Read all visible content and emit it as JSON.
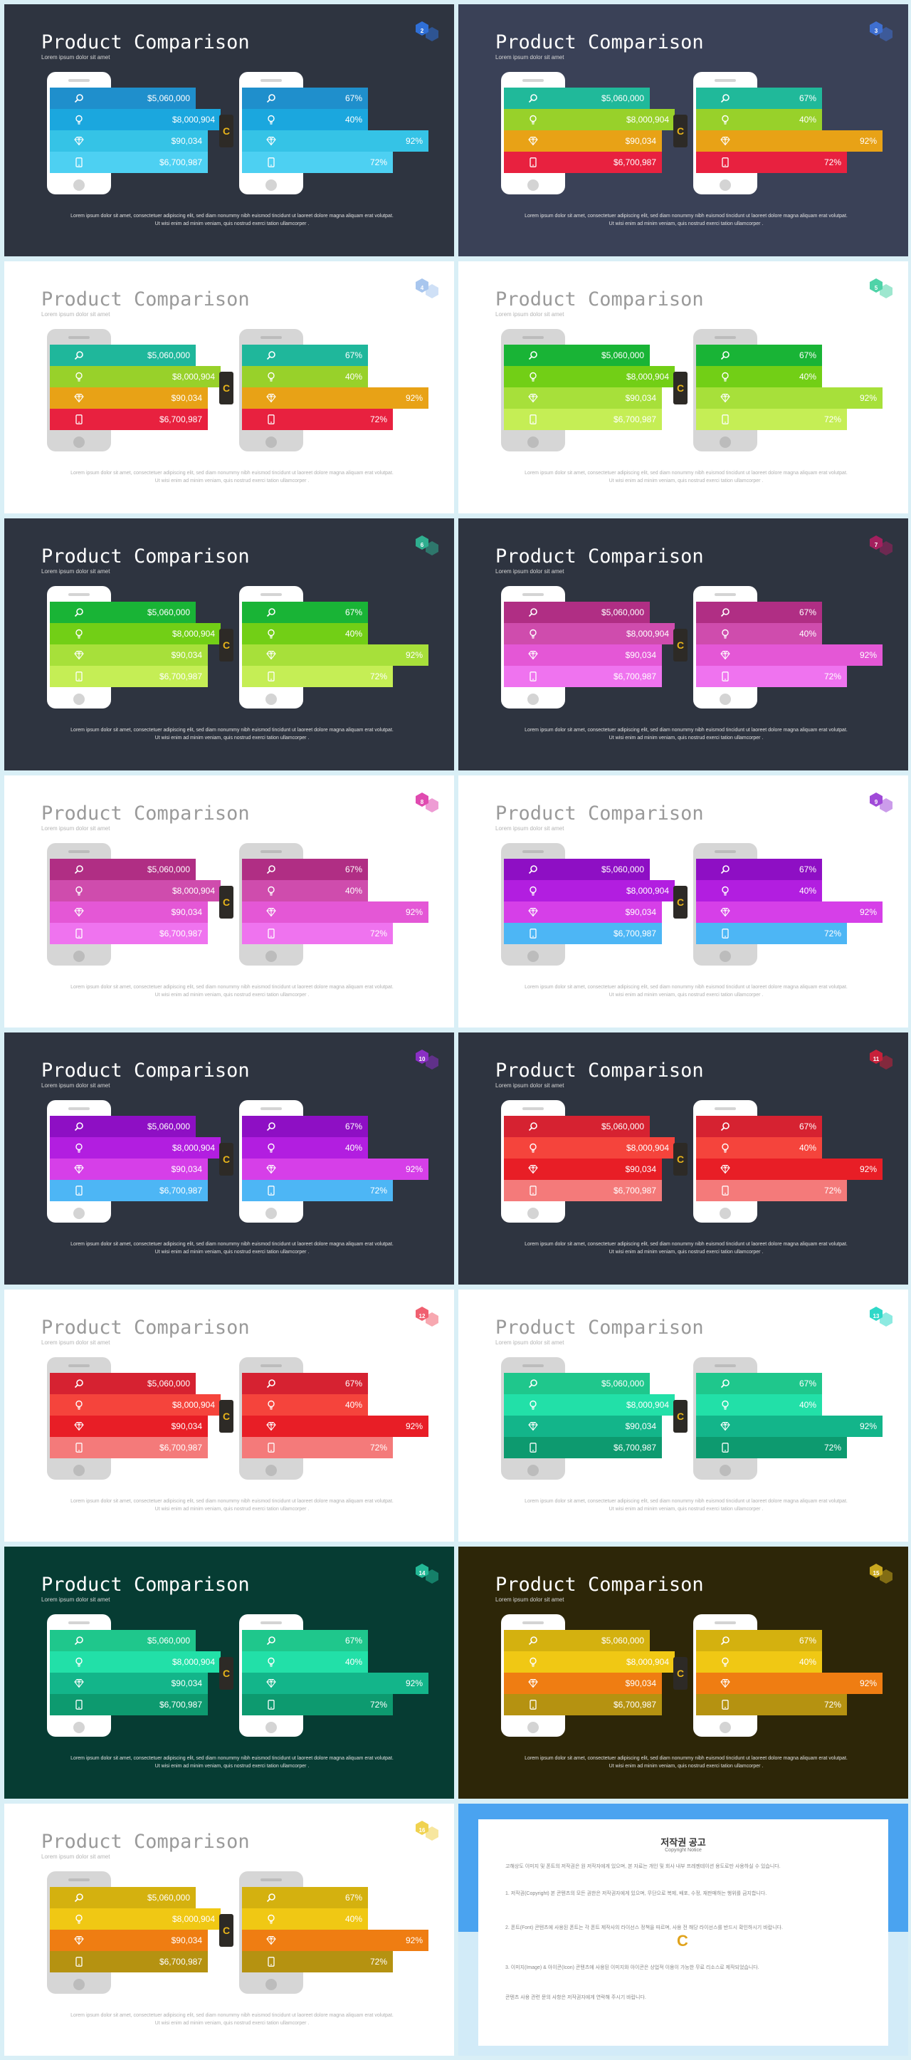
{
  "common": {
    "title": "Product Comparison",
    "subtitle": "Lorem ipsum dolor sit amet",
    "description": "Lorem ipsum dolor sit amet, consectetuer adipiscing elit, sed diam nonummy nibh euismod tincidunt ut laoreet dolore magna aliquam erat volutpat. Ut wisi enim ad minim veniam, quis nostrud exerci tation ullamcorper .",
    "left_values": [
      "$5,060,000",
      "$8,000,904",
      "$90,034",
      "$6,700,987"
    ],
    "right_values": [
      "67%",
      "40%",
      "92%",
      "72%"
    ],
    "row_icons": [
      "search-icon",
      "lightbulb-icon",
      "diamond-icon",
      "smartphone-icon"
    ],
    "badge_text": "C"
  },
  "slides": [
    {
      "num": "2",
      "theme": "dark",
      "bg": "#2e3440",
      "hex": "#2f6fd6",
      "rows": [
        "#1f8fcc",
        "#1ba7de",
        "#35c3e6",
        "#4dd0f2"
      ]
    },
    {
      "num": "3",
      "theme": "dark",
      "bg": "#3a4157",
      "hex": "#3f6fd0",
      "rows": [
        "#20b99a",
        "#98d12a",
        "#e8a216",
        "#e8213f"
      ]
    },
    {
      "num": "4",
      "theme": "light",
      "bg": "#ffffff",
      "hex": "#a8c6ee",
      "rows": [
        "#1fb79b",
        "#98d12a",
        "#e8a216",
        "#e8213f"
      ]
    },
    {
      "num": "5",
      "theme": "light",
      "bg": "#ffffff",
      "hex": "#4fd3a8",
      "rows": [
        "#19b436",
        "#72cf16",
        "#a7e03a",
        "#c5ee55"
      ]
    },
    {
      "num": "6",
      "theme": "dark",
      "bg": "#2e3440",
      "hex": "#2fae8f",
      "rows": [
        "#19b436",
        "#72cf16",
        "#a7e03a",
        "#c5ee55"
      ]
    },
    {
      "num": "7",
      "theme": "dark",
      "bg": "#2e3440",
      "hex": "#a3205e",
      "rows": [
        "#b02e84",
        "#cf4cad",
        "#e457d6",
        "#ef73ef"
      ]
    },
    {
      "num": "8",
      "theme": "light",
      "bg": "#ffffff",
      "hex": "#e04bb0",
      "rows": [
        "#b02e84",
        "#cf4cad",
        "#e457d6",
        "#ef73ef"
      ]
    },
    {
      "num": "9",
      "theme": "light",
      "bg": "#ffffff",
      "hex": "#a04ad8",
      "rows": [
        "#8e0fc4",
        "#b21ee0",
        "#d63fe8",
        "#4db6f5"
      ]
    },
    {
      "num": "10",
      "theme": "dark",
      "bg": "#2e3440",
      "hex": "#8a2fc4",
      "rows": [
        "#8e0fc4",
        "#b21ee0",
        "#d63fe8",
        "#4db6f5"
      ]
    },
    {
      "num": "11",
      "theme": "dark",
      "bg": "#2e3440",
      "hex": "#c8213a",
      "rows": [
        "#d62231",
        "#f5443c",
        "#e81e26",
        "#f47a7a"
      ]
    },
    {
      "num": "12",
      "theme": "light",
      "bg": "#ffffff",
      "hex": "#f06070",
      "rows": [
        "#d62231",
        "#f5443c",
        "#e81e26",
        "#f47a7a"
      ]
    },
    {
      "num": "13",
      "theme": "light",
      "bg": "#ffffff",
      "hex": "#2fd8c8",
      "rows": [
        "#1fc78c",
        "#22e0a8",
        "#13b58a",
        "#0d9a6f"
      ]
    },
    {
      "num": "14",
      "theme": "dark",
      "bg": "#063c33",
      "hex": "#23b896",
      "rows": [
        "#1fc78c",
        "#22e0a8",
        "#13b58a",
        "#0d9a6f"
      ]
    },
    {
      "num": "15",
      "theme": "dark",
      "bg": "#2d2608",
      "hex": "#c9a81f",
      "rows": [
        "#d4b10f",
        "#f0c814",
        "#ef7d12",
        "#b59211"
      ]
    },
    {
      "num": "16",
      "theme": "light",
      "bg": "#ffffff",
      "hex": "#f0d24f",
      "rows": [
        "#d4b10f",
        "#f0c814",
        "#ef7d12",
        "#b59211"
      ]
    }
  ],
  "copyright": {
    "title": "저작권 공고",
    "subtitle": "Copyright Notice",
    "paragraphs": [
      "고해상도 이미지 및 폰트의 저작권은 원 저작자에게 있으며, 본 자료는 개인 및 회사 내부 프레젠테이션 용도로만 사용하실 수 있습니다.",
      "1. 저작권(Copyright) 본 콘텐츠의 모든 권한은 저작권자에게 있으며, 무단으로 복제, 배포, 수정, 재판매하는 행위를 금지합니다.",
      "2. 폰트(Font) 콘텐츠에 사용된 폰트는 각 폰트 제작사의 라이선스 정책을 따르며, 사용 전 해당 라이선스를 반드시 확인하시기 바랍니다.",
      "3. 이미지(Image) & 아이콘(Icon) 콘텐츠에 사용된 이미지와 아이콘은 상업적 이용이 가능한 무료 리소스로 제작되었습니다.",
      "콘텐츠 사용 관련 문의 사항은 저작권자에게 연락해 주시기 바랍니다."
    ]
  }
}
